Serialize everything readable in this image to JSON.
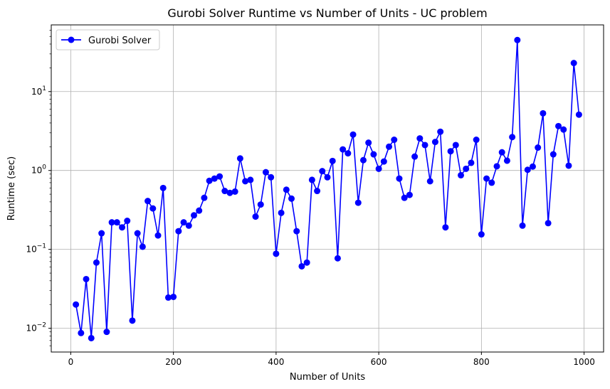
{
  "chart_data": {
    "type": "line",
    "title": "Gurobi Solver Runtime vs Number of Units - UC problem",
    "xlabel": "Number of Units",
    "ylabel": "Runtime (sec)",
    "xscale": "linear",
    "yscale": "log",
    "xlim": [
      -38,
      1038
    ],
    "ylim": [
      0.005,
      70
    ],
    "xticks": [
      0,
      200,
      400,
      600,
      800,
      1000
    ],
    "xtick_labels": [
      "0",
      "200",
      "400",
      "600",
      "800",
      "1000"
    ],
    "yticks": [
      0.01,
      0.1,
      1,
      10
    ],
    "ytick_labels": [
      {
        "base": "10",
        "exp": "−2"
      },
      {
        "base": "10",
        "exp": "−1"
      },
      {
        "base": "10",
        "exp": "0"
      },
      {
        "base": "10",
        "exp": "1"
      }
    ],
    "grid": true,
    "legend_position": "top-left",
    "series": [
      {
        "name": "Gurobi Solver",
        "color": "#0000ff",
        "marker": "circle",
        "x": [
          10,
          20,
          30,
          40,
          50,
          60,
          70,
          80,
          90,
          100,
          110,
          120,
          130,
          140,
          150,
          160,
          170,
          180,
          190,
          200,
          210,
          220,
          230,
          240,
          250,
          260,
          270,
          280,
          290,
          300,
          310,
          320,
          330,
          340,
          350,
          360,
          370,
          380,
          390,
          400,
          410,
          420,
          430,
          440,
          450,
          460,
          470,
          480,
          490,
          500,
          510,
          520,
          530,
          540,
          550,
          560,
          570,
          580,
          590,
          600,
          610,
          620,
          630,
          640,
          650,
          660,
          670,
          680,
          690,
          700,
          710,
          720,
          730,
          740,
          750,
          760,
          770,
          780,
          790,
          800,
          810,
          820,
          830,
          840,
          850,
          860,
          870,
          880,
          890,
          900,
          910,
          920,
          930,
          940,
          950,
          960,
          970,
          980,
          990
        ],
        "y": [
          0.02,
          0.0087,
          0.042,
          0.0075,
          0.068,
          0.16,
          0.009,
          0.22,
          0.22,
          0.19,
          0.23,
          0.0125,
          0.16,
          0.108,
          0.41,
          0.33,
          0.15,
          0.6,
          0.0245,
          0.025,
          0.17,
          0.22,
          0.2,
          0.27,
          0.31,
          0.45,
          0.74,
          0.79,
          0.84,
          0.55,
          0.52,
          0.54,
          1.42,
          0.73,
          0.76,
          0.26,
          0.37,
          0.95,
          0.82,
          0.088,
          0.29,
          0.57,
          0.44,
          0.17,
          0.061,
          0.068,
          0.76,
          0.55,
          0.98,
          0.82,
          1.32,
          0.077,
          1.85,
          1.65,
          2.85,
          0.39,
          1.35,
          2.25,
          1.6,
          1.05,
          1.3,
          2.0,
          2.45,
          0.79,
          0.45,
          0.49,
          1.5,
          2.55,
          2.1,
          0.73,
          2.3,
          3.1,
          0.19,
          1.75,
          2.1,
          0.87,
          1.05,
          1.25,
          2.45,
          0.155,
          0.79,
          0.7,
          1.13,
          1.7,
          1.33,
          2.65,
          45,
          0.2,
          1.02,
          1.12,
          1.95,
          5.3,
          0.215,
          1.6,
          3.65,
          3.3,
          1.15,
          23,
          5.1
        ]
      }
    ]
  }
}
